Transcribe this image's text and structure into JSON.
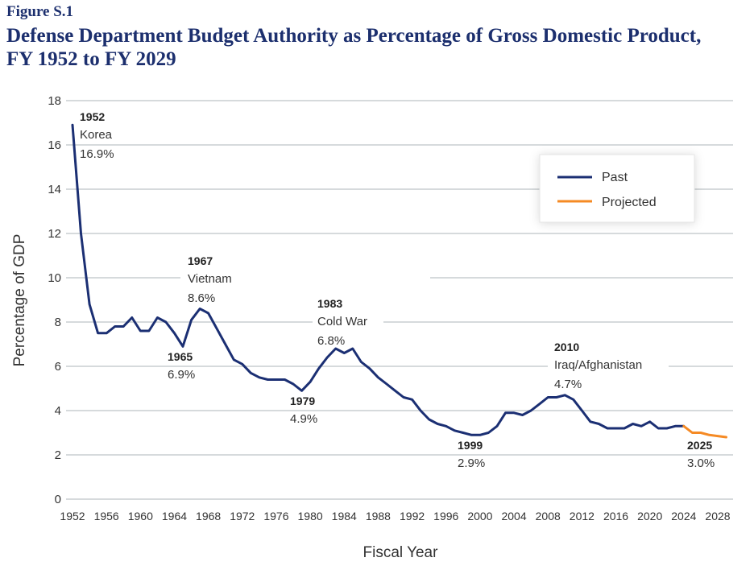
{
  "figure_label": "Figure S.1",
  "title_line1": "Defense Department Budget Authority as Percentage of Gross Domestic Product,",
  "title_line2": "FY 1952 to FY 2029",
  "colors": {
    "past": "#1b2f73",
    "projected": "#f58a24",
    "grid": "#c8cdd0",
    "title": "#1c2f6e"
  },
  "chart_data": {
    "type": "line",
    "title": "Defense Department Budget Authority as Percentage of Gross Domestic Product, FY 1952 to FY 2029",
    "xlabel": "Fiscal Year",
    "ylabel": "Percentage of GDP",
    "xlim": [
      1952,
      2029
    ],
    "ylim": [
      0,
      18
    ],
    "grid": true,
    "yticks": [
      0,
      2,
      4,
      6,
      8,
      10,
      12,
      14,
      16,
      18
    ],
    "xticks": [
      1952,
      1956,
      1960,
      1964,
      1968,
      1972,
      1976,
      1980,
      1984,
      1988,
      1992,
      1996,
      2000,
      2004,
      2008,
      2012,
      2016,
      2020,
      2024,
      2028
    ],
    "legend_position": "top-right",
    "series": [
      {
        "name": "Past",
        "x": [
          1952,
          1953,
          1954,
          1955,
          1956,
          1957,
          1958,
          1959,
          1960,
          1961,
          1962,
          1963,
          1964,
          1965,
          1966,
          1967,
          1968,
          1969,
          1970,
          1971,
          1972,
          1973,
          1974,
          1975,
          1976,
          1977,
          1978,
          1979,
          1980,
          1981,
          1982,
          1983,
          1984,
          1985,
          1986,
          1987,
          1988,
          1989,
          1990,
          1991,
          1992,
          1993,
          1994,
          1995,
          1996,
          1997,
          1998,
          1999,
          2000,
          2001,
          2002,
          2003,
          2004,
          2005,
          2006,
          2007,
          2008,
          2009,
          2010,
          2011,
          2012,
          2013,
          2014,
          2015,
          2016,
          2017,
          2018,
          2019,
          2020,
          2021,
          2022,
          2023,
          2024
        ],
        "values": [
          16.9,
          12.0,
          8.8,
          7.5,
          7.5,
          7.8,
          7.8,
          8.2,
          7.6,
          7.6,
          8.2,
          8.0,
          7.5,
          6.9,
          8.1,
          8.6,
          8.4,
          7.7,
          7.0,
          6.3,
          6.1,
          5.7,
          5.5,
          5.4,
          5.4,
          5.4,
          5.2,
          4.9,
          5.3,
          5.9,
          6.4,
          6.8,
          6.6,
          6.8,
          6.2,
          5.9,
          5.5,
          5.2,
          4.9,
          4.6,
          4.5,
          4.0,
          3.6,
          3.4,
          3.3,
          3.1,
          3.0,
          2.9,
          2.9,
          3.0,
          3.3,
          3.9,
          3.9,
          3.8,
          4.0,
          4.3,
          4.6,
          4.6,
          4.7,
          4.5,
          4.0,
          3.5,
          3.4,
          3.2,
          3.2,
          3.2,
          3.4,
          3.3,
          3.5,
          3.2,
          3.2,
          3.3,
          3.3
        ]
      },
      {
        "name": "Projected",
        "x": [
          2024,
          2025,
          2026,
          2027,
          2028,
          2029
        ],
        "values": [
          3.3,
          3.0,
          3.0,
          2.9,
          2.85,
          2.8
        ]
      }
    ],
    "annotations": [
      {
        "year": "1952",
        "label": "Korea",
        "value": "16.9%"
      },
      {
        "year": "1965",
        "label": "",
        "value": "6.9%"
      },
      {
        "year": "1967",
        "label": "Vietnam",
        "value": "8.6%"
      },
      {
        "year": "1979",
        "label": "",
        "value": "4.9%"
      },
      {
        "year": "1983",
        "label": "Cold War",
        "value": "6.8%"
      },
      {
        "year": "1999",
        "label": "",
        "value": "2.9%"
      },
      {
        "year": "2010",
        "label": "Iraq/Afghanistan",
        "value": "4.7%"
      },
      {
        "year": "2025",
        "label": "",
        "value": "3.0%"
      }
    ]
  }
}
